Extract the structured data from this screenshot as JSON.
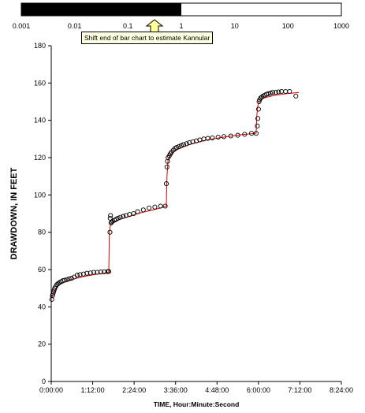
{
  "bar_control": {
    "scale_labels": [
      "0.001",
      "0.01",
      "0.1",
      "1",
      "10",
      "100",
      "1000"
    ],
    "scale_values": [
      0.001,
      0.01,
      0.1,
      1,
      10,
      100,
      1000
    ],
    "filled_to_value": 1.0,
    "fill_color": "#000000",
    "tooltip": "Shift end of bar chart to estimate Kannular",
    "arrow_color": "#ffff99"
  },
  "chart_data": {
    "type": "scatter",
    "title": "",
    "xlabel": "TIME, Hour:Minute:Second",
    "ylabel": "DRAWDOWN, IN FEET",
    "xlim_minutes": [
      0,
      504
    ],
    "ylim": [
      0,
      180
    ],
    "x_tick_labels": [
      "0:00:00",
      "1:12:00",
      "2:24:00",
      "3:36:00",
      "4:48:00",
      "6:00:00",
      "7:12:00",
      "8:24:00"
    ],
    "y_ticks": [
      0,
      20,
      40,
      60,
      80,
      100,
      120,
      140,
      160,
      180
    ],
    "grid": false,
    "series": [
      {
        "kind": "observed",
        "marker": "open-circle",
        "color": "#000000",
        "x_minutes": [
          1,
          2,
          3,
          4,
          5,
          6,
          8,
          10,
          12,
          14,
          17,
          20,
          23,
          27,
          31,
          35,
          40,
          45,
          50,
          56,
          62,
          68,
          74,
          80,
          86,
          92,
          98,
          100,
          102,
          102.5,
          103,
          104,
          105,
          107,
          110,
          113,
          116,
          120,
          125,
          130,
          136,
          143,
          150,
          160,
          170,
          180,
          190,
          198,
          200,
          201,
          202,
          203,
          205,
          207,
          209,
          212,
          215,
          218,
          222,
          226,
          230,
          235,
          240,
          246,
          252,
          258,
          265,
          272,
          280,
          290,
          300,
          312,
          324,
          336,
          348,
          356,
          358,
          359,
          360,
          361,
          362,
          364,
          366,
          368,
          371,
          374,
          377,
          381,
          385,
          390,
          395,
          400,
          407,
          414,
          425
        ],
        "values": [
          44,
          46,
          47,
          48,
          49,
          50,
          51,
          52,
          52.5,
          53,
          53.5,
          54,
          54.3,
          54.6,
          55,
          55.3,
          56,
          57,
          57.3,
          57.6,
          58,
          58.2,
          58.5,
          58.5,
          58.7,
          58.8,
          58.9,
          59,
          80,
          87.5,
          89,
          85,
          85.5,
          86,
          86.5,
          87,
          87.5,
          88,
          88.5,
          89,
          89.5,
          90,
          91,
          92,
          93,
          93.5,
          94,
          94,
          106,
          115,
          118,
          120,
          121,
          122,
          123,
          124,
          125,
          125.5,
          126,
          126.5,
          127,
          127.5,
          128,
          128.5,
          129,
          129.5,
          130,
          130.3,
          130.6,
          131,
          131.3,
          131.6,
          132,
          132.5,
          133,
          133,
          137,
          141,
          146,
          150,
          151,
          152,
          152.5,
          153,
          153.5,
          154,
          154.3,
          154.6,
          155,
          155,
          155.3,
          155.5,
          155.5,
          155.5,
          153
        ]
      },
      {
        "kind": "fitted",
        "marker": "line",
        "color": "#e60000",
        "x_minutes": [
          1,
          3,
          6,
          10,
          15,
          25,
          40,
          60,
          80,
          100,
          101,
          103,
          106,
          112,
          120,
          135,
          150,
          170,
          190,
          200,
          201,
          203,
          206,
          212,
          220,
          240,
          270,
          300,
          330,
          356,
          357,
          359,
          362,
          368,
          375,
          390,
          410,
          430
        ],
        "values": [
          45,
          47,
          49,
          50.5,
          52,
          53.5,
          55,
          56.5,
          57.5,
          58.5,
          80,
          84,
          85,
          86,
          87,
          88.5,
          90,
          91.5,
          93,
          94,
          110,
          119,
          121,
          123,
          124.5,
          127,
          129.5,
          131,
          132.3,
          133,
          142,
          148,
          150.5,
          151.8,
          152.5,
          153.5,
          154.3,
          155
        ]
      }
    ]
  }
}
